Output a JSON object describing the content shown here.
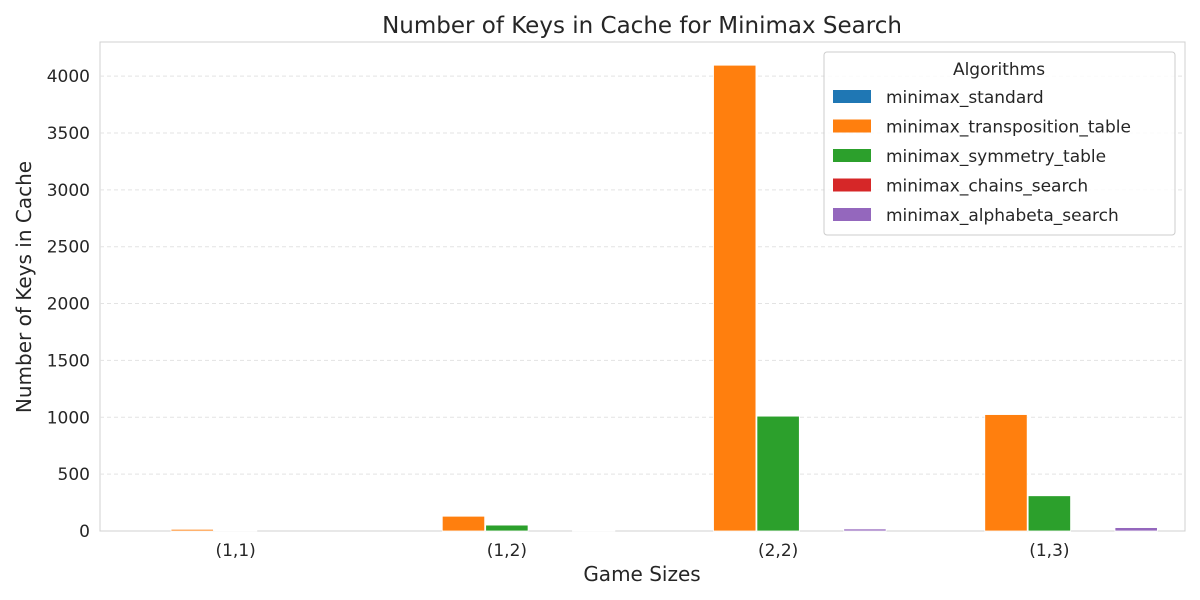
{
  "chart_data": {
    "type": "bar",
    "title": "Number of Keys in Cache for Minimax Search",
    "xlabel": "Game Sizes",
    "ylabel": "Number of Keys in Cache",
    "categories": [
      "(1,1)",
      "(1,2)",
      "(2,2)",
      "(1,3)"
    ],
    "ylim": [
      0,
      4300
    ],
    "yticks": [
      0,
      500,
      1000,
      1500,
      2000,
      2500,
      3000,
      3500,
      4000
    ],
    "grid": true,
    "legend": {
      "title": "Algorithms",
      "placement": "top-right"
    },
    "series": [
      {
        "name": "minimax_standard",
        "color": "#1f77b4",
        "values": [
          0,
          0,
          0,
          0
        ]
      },
      {
        "name": "minimax_transposition_table",
        "color": "#ff7f0e",
        "values": [
          15,
          130,
          4096,
          1024
        ]
      },
      {
        "name": "minimax_symmetry_table",
        "color": "#2ca02c",
        "values": [
          3,
          52,
          1010,
          310
        ]
      },
      {
        "name": "minimax_chains_search",
        "color": "#d62728",
        "values": [
          0,
          0,
          0,
          0
        ]
      },
      {
        "name": "minimax_alphabeta_search",
        "color": "#9467bd",
        "values": [
          0,
          3,
          18,
          30
        ]
      }
    ]
  }
}
